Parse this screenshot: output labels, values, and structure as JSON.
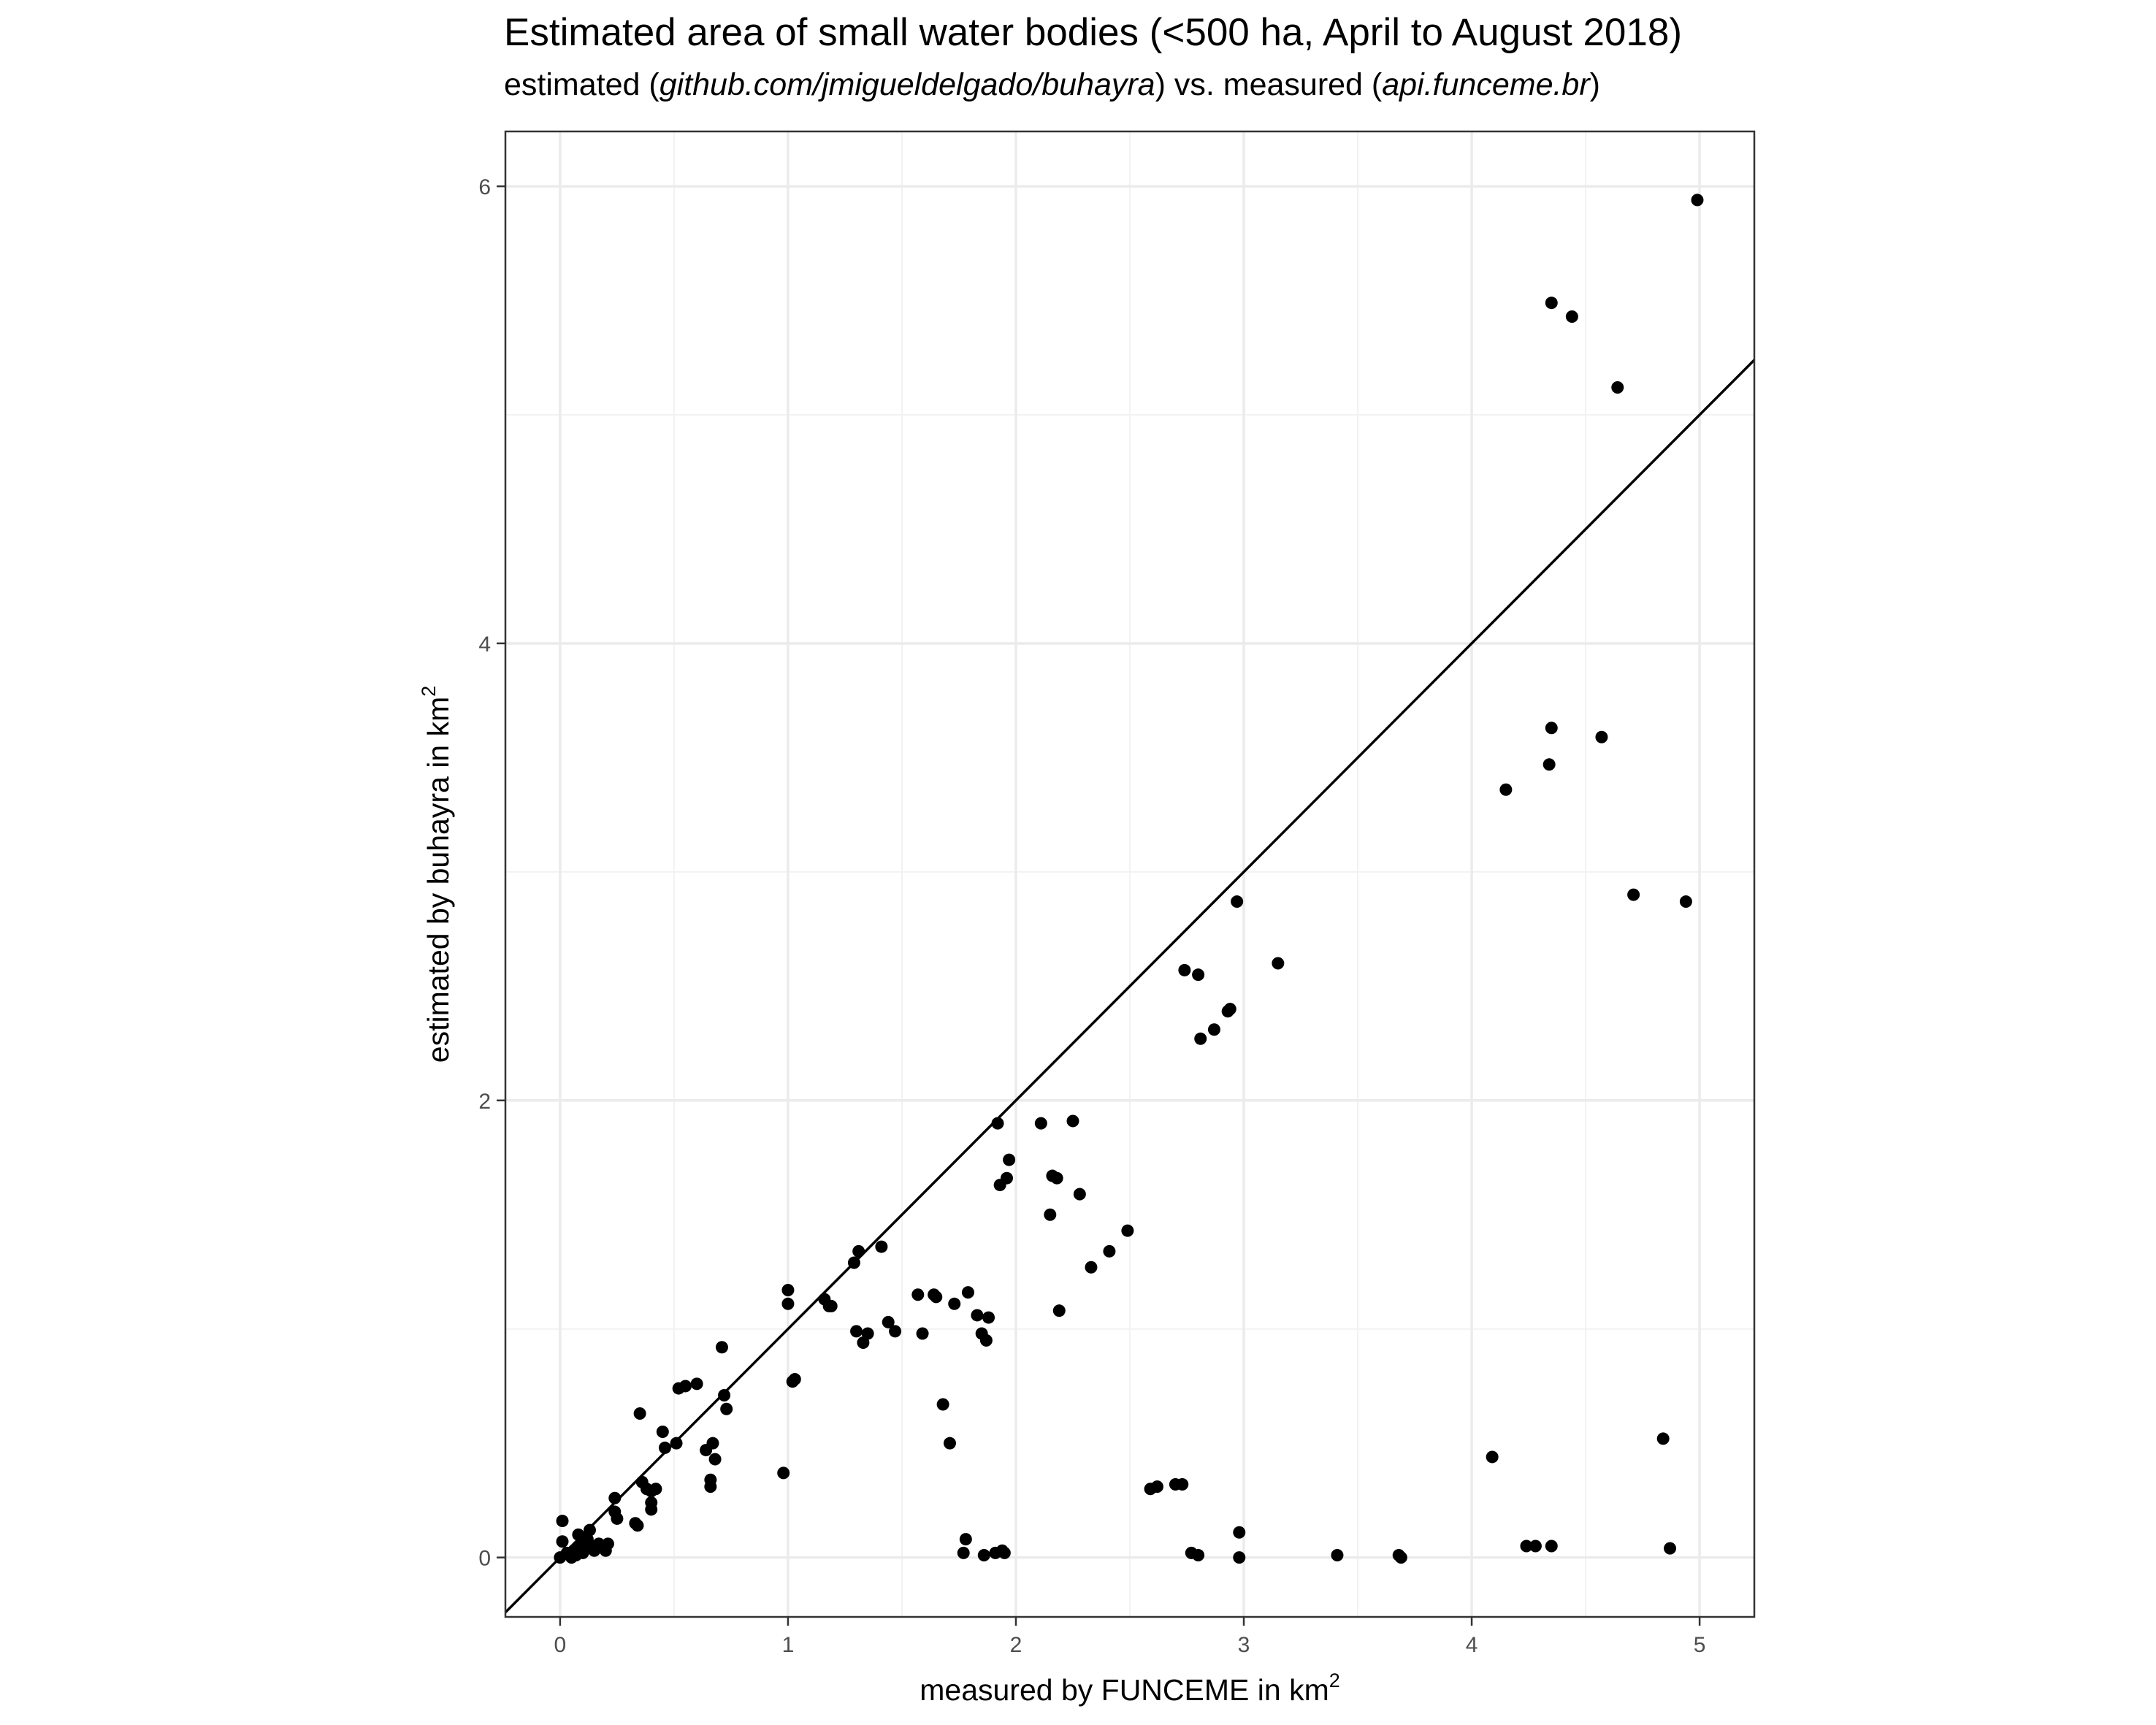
{
  "chart_data": {
    "type": "scatter",
    "title": "Estimated area of small water bodies (<500 ha, April to August 2018)",
    "subtitle": {
      "p1": "estimated (",
      "p2": "github.com/jmigueldelgado/buhayra",
      "p3": ") vs. measured (",
      "p4": "api.funceme.br",
      "p5": ")"
    },
    "xlabel": {
      "text": "measured by FUNCEME in  km",
      "sup": "2"
    },
    "ylabel": {
      "text": "estimated by buhayra in  km",
      "sup": "2"
    },
    "xlim": [
      -0.24,
      5.24
    ],
    "ylim": [
      -0.26,
      6.24
    ],
    "x_ticks": [
      0,
      1,
      2,
      3,
      4,
      5
    ],
    "y_ticks": [
      0,
      2,
      4,
      6
    ],
    "grid": true,
    "reference_line": {
      "slope": 1,
      "intercept": 0
    },
    "point_color": "#000000",
    "points": [
      [
        0.0,
        0.0
      ],
      [
        0.01,
        0.07
      ],
      [
        0.01,
        0.16
      ],
      [
        0.03,
        0.02
      ],
      [
        0.05,
        0.0
      ],
      [
        0.06,
        0.03
      ],
      [
        0.07,
        0.01
      ],
      [
        0.08,
        0.1
      ],
      [
        0.09,
        0.05
      ],
      [
        0.1,
        0.02
      ],
      [
        0.11,
        0.04
      ],
      [
        0.12,
        0.08
      ],
      [
        0.13,
        0.12
      ],
      [
        0.14,
        0.05
      ],
      [
        0.15,
        0.03
      ],
      [
        0.17,
        0.06
      ],
      [
        0.2,
        0.03
      ],
      [
        0.21,
        0.06
      ],
      [
        0.24,
        0.26
      ],
      [
        0.24,
        0.2
      ],
      [
        0.25,
        0.17
      ],
      [
        0.33,
        0.15
      ],
      [
        0.34,
        0.14
      ],
      [
        0.35,
        0.63
      ],
      [
        0.36,
        0.33
      ],
      [
        0.38,
        0.3
      ],
      [
        0.4,
        0.29
      ],
      [
        0.4,
        0.21
      ],
      [
        0.4,
        0.24
      ],
      [
        0.42,
        0.3
      ],
      [
        0.45,
        0.55
      ],
      [
        0.46,
        0.48
      ],
      [
        0.51,
        0.5
      ],
      [
        0.52,
        0.74
      ],
      [
        0.55,
        0.75
      ],
      [
        0.6,
        0.76
      ],
      [
        0.64,
        0.47
      ],
      [
        0.66,
        0.34
      ],
      [
        0.66,
        0.31
      ],
      [
        0.67,
        0.5
      ],
      [
        0.68,
        0.43
      ],
      [
        0.71,
        0.92
      ],
      [
        0.72,
        0.71
      ],
      [
        0.73,
        0.65
      ],
      [
        0.98,
        0.37
      ],
      [
        1.0,
        1.17
      ],
      [
        1.0,
        1.11
      ],
      [
        1.02,
        0.77
      ],
      [
        1.03,
        0.78
      ],
      [
        1.16,
        1.13
      ],
      [
        1.18,
        1.1
      ],
      [
        1.19,
        1.1
      ],
      [
        1.29,
        1.29
      ],
      [
        1.3,
        0.99
      ],
      [
        1.31,
        1.34
      ],
      [
        1.33,
        0.94
      ],
      [
        1.35,
        0.98
      ],
      [
        1.41,
        1.36
      ],
      [
        1.44,
        1.03
      ],
      [
        1.47,
        0.99
      ],
      [
        1.57,
        1.15
      ],
      [
        1.59,
        0.98
      ],
      [
        1.64,
        1.15
      ],
      [
        1.65,
        1.14
      ],
      [
        1.68,
        0.67
      ],
      [
        1.71,
        0.5
      ],
      [
        1.73,
        1.11
      ],
      [
        1.77,
        0.02
      ],
      [
        1.78,
        0.08
      ],
      [
        1.79,
        1.16
      ],
      [
        1.83,
        1.06
      ],
      [
        1.85,
        0.98
      ],
      [
        1.86,
        0.01
      ],
      [
        1.87,
        0.95
      ],
      [
        1.88,
        1.05
      ],
      [
        1.91,
        0.02
      ],
      [
        1.92,
        1.9
      ],
      [
        1.93,
        1.63
      ],
      [
        1.94,
        0.03
      ],
      [
        1.95,
        0.02
      ],
      [
        1.96,
        1.66
      ],
      [
        1.97,
        1.74
      ],
      [
        2.11,
        1.9
      ],
      [
        2.15,
        1.5
      ],
      [
        2.16,
        1.67
      ],
      [
        2.18,
        1.66
      ],
      [
        2.19,
        1.08
      ],
      [
        2.25,
        1.91
      ],
      [
        2.28,
        1.59
      ],
      [
        2.33,
        1.27
      ],
      [
        2.41,
        1.34
      ],
      [
        2.49,
        1.43
      ],
      [
        2.59,
        0.3
      ],
      [
        2.62,
        0.31
      ],
      [
        2.7,
        0.32
      ],
      [
        2.73,
        0.32
      ],
      [
        2.74,
        2.57
      ],
      [
        2.77,
        0.02
      ],
      [
        2.8,
        2.55
      ],
      [
        2.8,
        0.01
      ],
      [
        2.81,
        2.27
      ],
      [
        2.87,
        2.31
      ],
      [
        2.93,
        2.39
      ],
      [
        2.94,
        2.4
      ],
      [
        2.97,
        2.87
      ],
      [
        2.98,
        0.11
      ],
      [
        2.98,
        0.0
      ],
      [
        3.15,
        2.6
      ],
      [
        3.41,
        0.01
      ],
      [
        3.68,
        0.01
      ],
      [
        3.69,
        0.0
      ],
      [
        4.09,
        0.44
      ],
      [
        4.15,
        3.36
      ],
      [
        4.24,
        0.05
      ],
      [
        4.28,
        0.05
      ],
      [
        4.34,
        3.47
      ],
      [
        4.35,
        0.05
      ],
      [
        4.35,
        3.63
      ],
      [
        4.35,
        5.49
      ],
      [
        4.44,
        5.43
      ],
      [
        4.57,
        3.59
      ],
      [
        4.64,
        5.12
      ],
      [
        4.71,
        2.9
      ],
      [
        4.84,
        0.52
      ],
      [
        4.87,
        0.04
      ],
      [
        4.94,
        2.87
      ],
      [
        4.99,
        5.94
      ]
    ]
  }
}
